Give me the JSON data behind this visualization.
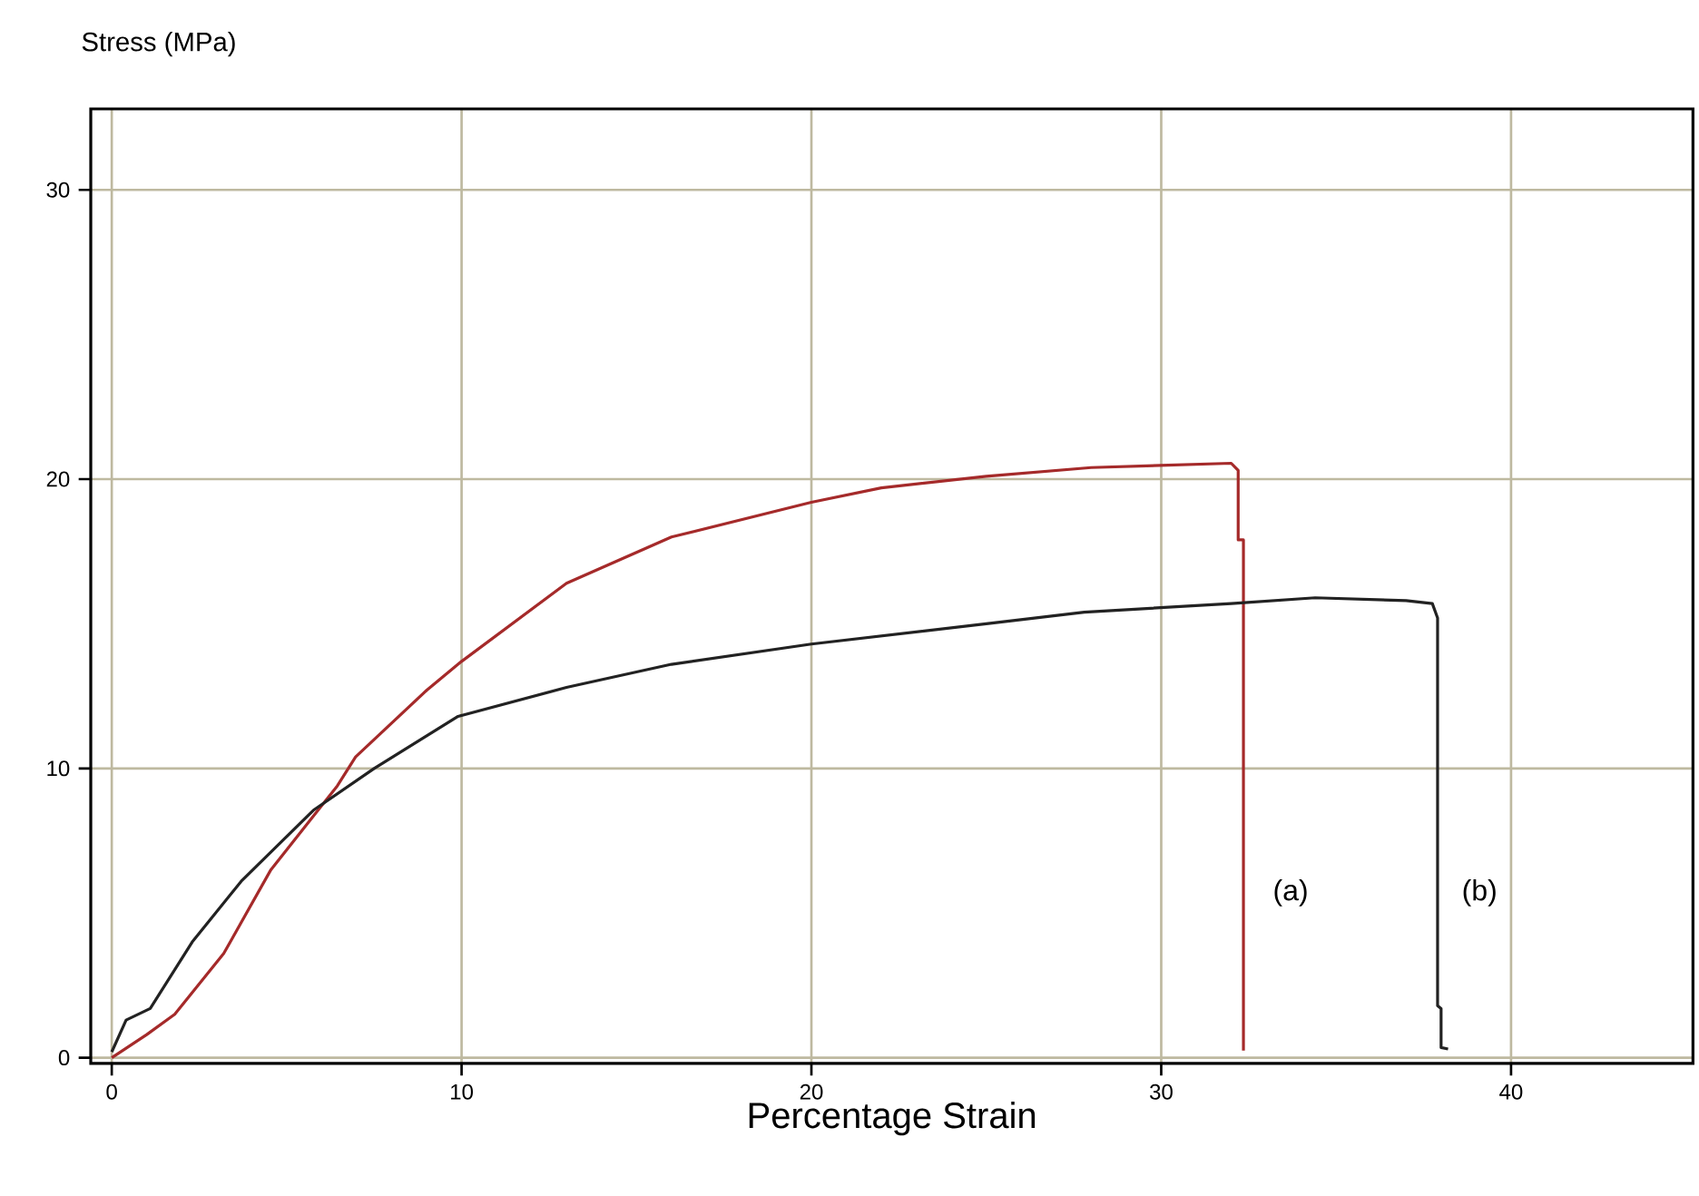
{
  "chart_data": {
    "type": "line",
    "xlabel": "Percentage Strain",
    "ylabel": "Stress (MPa)",
    "xlim": [
      -0.6,
      45.2
    ],
    "ylim": [
      -0.2,
      32.8
    ],
    "xticks": [
      0,
      10,
      20,
      30,
      40
    ],
    "yticks": [
      0,
      10,
      20,
      30
    ],
    "grid": true,
    "marker": "none",
    "line_style": "solid",
    "series": [
      {
        "color": "#a52a2a",
        "x": [
          0,
          1.0,
          1.8,
          3.2,
          4.55,
          5.76,
          6.45,
          6.97,
          9.0,
          10,
          13,
          16,
          20,
          22,
          25,
          28,
          32.0,
          32.2,
          32.2,
          32.35,
          32.35
        ],
        "values": [
          0,
          0.8,
          1.5,
          3.6,
          6.5,
          8.35,
          9.4,
          10.4,
          12.7,
          13.7,
          16.4,
          18.0,
          19.2,
          19.7,
          20.1,
          20.4,
          20.55,
          20.3,
          17.9,
          17.9,
          0.25
        ]
      },
      {
        "color": "#222222",
        "x": [
          0,
          0.41,
          1.1,
          2.3,
          3.7,
          5.76,
          7.5,
          9.9,
          13,
          16,
          20,
          25,
          27.8,
          32.0,
          34.4,
          37.0,
          37.75,
          37.9,
          37.9,
          38.0,
          38.0,
          38.2
        ],
        "values": [
          0.2,
          1.3,
          1.7,
          4.0,
          6.1,
          8.55,
          10.0,
          11.8,
          12.8,
          13.6,
          14.3,
          15.0,
          15.4,
          15.7,
          15.9,
          15.8,
          15.7,
          15.2,
          1.8,
          1.7,
          0.35,
          0.3
        ]
      }
    ],
    "annotations": [
      {
        "text": "(a)",
        "x": 33.7,
        "y": 5.7
      },
      {
        "text": "(b)",
        "x": 39.1,
        "y": 5.7
      }
    ]
  }
}
